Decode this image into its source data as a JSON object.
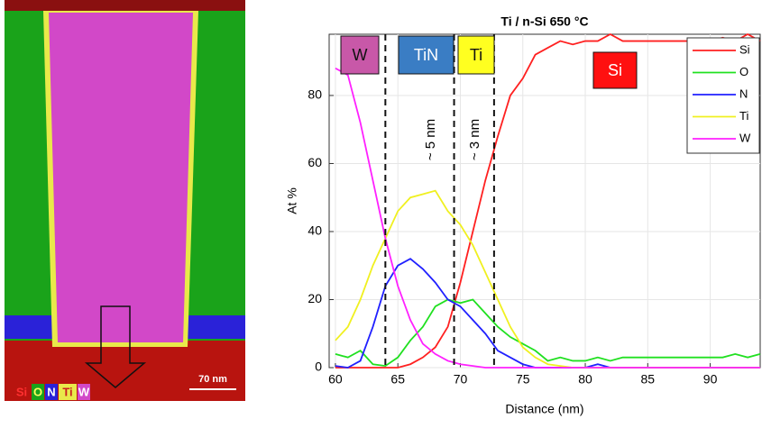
{
  "chart_data": {
    "type": "line",
    "title": "Ti / n-Si 650 °C",
    "xlabel": "Distance (nm)",
    "ylabel": "At %",
    "x": [
      60,
      61,
      62,
      63,
      64,
      65,
      66,
      67,
      68,
      69,
      70,
      71,
      72,
      73,
      74,
      75,
      76,
      77,
      78,
      79,
      80,
      81,
      82,
      83,
      84,
      85,
      86,
      87,
      88,
      89,
      90,
      91,
      92,
      93,
      94
    ],
    "series": [
      {
        "name": "Si",
        "color": "#ff2020",
        "values": [
          0,
          0,
          0,
          0,
          0,
          0,
          1,
          3,
          6,
          12,
          25,
          40,
          55,
          68,
          80,
          85,
          92,
          94,
          96,
          95,
          96,
          96,
          98,
          96,
          96,
          96,
          96,
          96,
          96,
          96,
          96,
          97,
          96,
          98,
          96
        ]
      },
      {
        "name": "O",
        "color": "#20e020",
        "values": [
          4,
          3,
          5,
          1,
          0.5,
          3,
          8,
          12,
          18,
          20,
          19,
          20,
          16,
          12,
          9,
          7,
          5,
          2,
          3,
          2,
          2,
          3,
          2,
          3,
          3,
          3,
          3,
          3,
          3,
          3,
          3,
          3,
          4,
          3,
          4
        ]
      },
      {
        "name": "N",
        "color": "#2020ff",
        "values": [
          0.5,
          0,
          2,
          12,
          24,
          30,
          32,
          29,
          25,
          20,
          18,
          14,
          10,
          5,
          3,
          1,
          0,
          0,
          0,
          0,
          0,
          1,
          0,
          0,
          0,
          0,
          0,
          0,
          0,
          0,
          0,
          0,
          0,
          0,
          0
        ]
      },
      {
        "name": "Ti",
        "color": "#f0f020",
        "values": [
          8,
          12,
          20,
          30,
          38,
          46,
          50,
          51,
          52,
          46,
          42,
          36,
          28,
          20,
          12,
          6,
          3,
          1,
          0.5,
          0,
          0,
          0,
          0,
          0,
          0,
          0,
          0,
          0,
          0,
          0,
          0,
          0,
          0,
          0,
          0
        ]
      },
      {
        "name": "W",
        "color": "#ff20ff",
        "values": [
          88,
          86,
          72,
          55,
          38,
          24,
          14,
          7,
          4,
          2,
          1,
          0.5,
          0,
          0,
          0,
          0,
          0,
          0,
          0,
          0,
          0,
          0,
          0,
          0,
          0,
          0,
          0,
          0,
          0,
          0,
          0,
          0,
          0,
          0,
          0
        ]
      }
    ],
    "xlim": [
      59.5,
      94
    ],
    "ylim": [
      0,
      98
    ],
    "xticks": [
      60,
      65,
      70,
      75,
      80,
      85,
      90
    ],
    "yticks": [
      0,
      20,
      40,
      60,
      80
    ],
    "grid": true,
    "legend": "upper right",
    "boundaries": [
      64,
      69.5,
      72.7
    ],
    "region_labels": [
      "W",
      "TiN",
      "Ti",
      "Si"
    ],
    "annotations": [
      "~ 5 nm",
      "~ 3 nm"
    ]
  },
  "image": {
    "element_labels": [
      "Si",
      "O",
      "N",
      "Ti",
      "W"
    ],
    "scale_bar": "70 nm"
  }
}
